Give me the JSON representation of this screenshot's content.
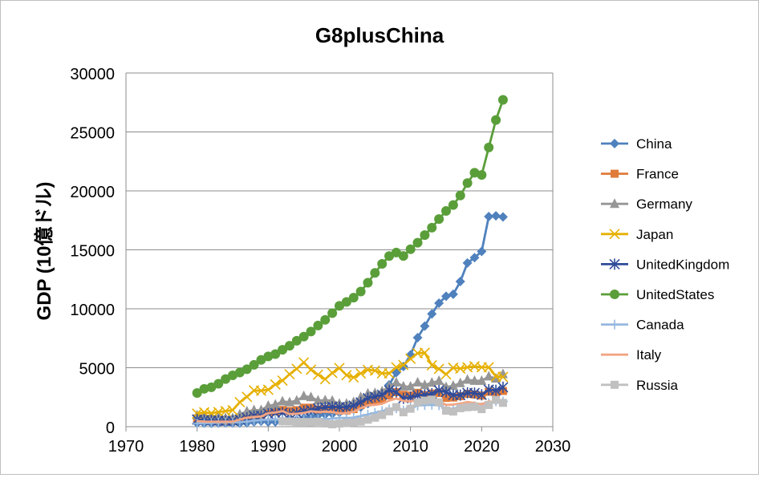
{
  "chart_data": {
    "type": "scatter",
    "title": "G8plusChina",
    "xlabel": "",
    "ylabel": "GDP (10億ドル)",
    "xlim": [
      1970,
      2030
    ],
    "ylim": [
      0,
      30000
    ],
    "x_ticks": [
      1970,
      1980,
      1990,
      2000,
      2010,
      2020,
      2030
    ],
    "y_ticks": [
      0,
      5000,
      10000,
      15000,
      20000,
      25000,
      30000
    ],
    "grid": "horizontal",
    "legend_position": "right",
    "x": [
      1980,
      1981,
      1982,
      1983,
      1984,
      1985,
      1986,
      1987,
      1988,
      1989,
      1990,
      1991,
      1992,
      1993,
      1994,
      1995,
      1996,
      1997,
      1998,
      1999,
      2000,
      2001,
      2002,
      2003,
      2004,
      2005,
      2006,
      2007,
      2008,
      2009,
      2010,
      2011,
      2012,
      2013,
      2014,
      2015,
      2016,
      2017,
      2018,
      2019,
      2020,
      2021,
      2022,
      2023
    ],
    "series": [
      {
        "name": "China",
        "color": "#4f81bd",
        "marker": "diamond",
        "values": [
          310,
          290,
          280,
          300,
          310,
          310,
          300,
          320,
          410,
          460,
          400,
          410,
          490,
          620,
          560,
          730,
          860,
          960,
          1030,
          1090,
          1210,
          1340,
          1470,
          1660,
          1960,
          2290,
          2750,
          3550,
          4590,
          5100,
          6090,
          7550,
          8530,
          9570,
          10480,
          11060,
          11230,
          12310,
          13890,
          14340,
          14860,
          17820,
          17880,
          17790
        ]
      },
      {
        "name": "France",
        "color": "#e07b39",
        "marker": "square",
        "values": [
          700,
          620,
          580,
          560,
          530,
          550,
          770,
          920,
          1010,
          1020,
          1270,
          1280,
          1410,
          1330,
          1400,
          1610,
          1610,
          1460,
          1500,
          1480,
          1370,
          1380,
          1490,
          1840,
          2120,
          2200,
          2320,
          2660,
          2930,
          2700,
          2650,
          2870,
          2680,
          2810,
          2850,
          2440,
          2470,
          2590,
          2790,
          2730,
          2640,
          2960,
          2780,
          3030
        ]
      },
      {
        "name": "Germany",
        "color": "#969696",
        "marker": "triangle",
        "values": [
          950,
          800,
          780,
          770,
          720,
          730,
          1050,
          1300,
          1400,
          1400,
          1770,
          1870,
          2140,
          2070,
          2210,
          2590,
          2500,
          2220,
          2240,
          2200,
          1950,
          1950,
          2080,
          2500,
          2810,
          2850,
          2990,
          3430,
          3750,
          3410,
          3400,
          3750,
          3530,
          3730,
          3890,
          3360,
          3470,
          3690,
          3980,
          3890,
          3890,
          4260,
          4080,
          4460
        ]
      },
      {
        "name": "Japan",
        "color": "#e6b000",
        "marker": "x",
        "values": [
          1110,
          1220,
          1140,
          1240,
          1320,
          1400,
          2080,
          2530,
          3070,
          3050,
          3130,
          3580,
          3910,
          4450,
          4910,
          5450,
          4830,
          4410,
          4030,
          4560,
          4970,
          4370,
          4180,
          4520,
          4820,
          4760,
          4530,
          4520,
          5040,
          5230,
          5760,
          6230,
          6270,
          5210,
          4900,
          4440,
          5000,
          4930,
          5040,
          5120,
          5040,
          5040,
          4260,
          4210
        ]
      },
      {
        "name": "UnitedKingdom",
        "color": "#2f4b99",
        "marker": "asterisk",
        "values": [
          600,
          560,
          530,
          510,
          480,
          500,
          600,
          750,
          910,
          920,
          1090,
          1140,
          1180,
          1070,
          1150,
          1330,
          1400,
          1550,
          1640,
          1680,
          1660,
          1640,
          1790,
          2060,
          2420,
          2540,
          2710,
          3090,
          2920,
          2410,
          2490,
          2660,
          2700,
          2790,
          3070,
          2930,
          2690,
          2680,
          2870,
          2850,
          2700,
          3140,
          3080,
          3340
        ]
      },
      {
        "name": "UnitedStates",
        "color": "#5a9e3a",
        "marker": "circle",
        "values": [
          2860,
          3210,
          3340,
          3640,
          4040,
          4350,
          4590,
          4870,
          5250,
          5660,
          5960,
          6160,
          6520,
          6860,
          7290,
          7640,
          8070,
          8580,
          9060,
          9630,
          10250,
          10580,
          10940,
          11460,
          12210,
          13040,
          13810,
          14470,
          14770,
          14480,
          15050,
          15600,
          16250,
          16880,
          17610,
          18300,
          18800,
          19610,
          20660,
          21540,
          21350,
          23680,
          26010,
          27720
        ]
      },
      {
        "name": "Canada",
        "color": "#95b8e0",
        "marker": "plus",
        "values": [
          280,
          310,
          320,
          350,
          360,
          370,
          380,
          430,
          510,
          570,
          600,
          610,
          590,
          580,
          580,
          600,
          630,
          650,
          630,
          680,
          750,
          740,
          760,
          900,
          1030,
          1170,
          1320,
          1470,
          1550,
          1380,
          1620,
          1790,
          1830,
          1850,
          1810,
          1560,
          1530,
          1650,
          1730,
          1740,
          1650,
          2010,
          2160,
          2140
        ]
      },
      {
        "name": "Italy",
        "color": "#f2a582",
        "marker": "none",
        "values": [
          480,
          430,
          420,
          430,
          420,
          430,
          610,
          760,
          830,
          870,
          1140,
          1200,
          1320,
          1070,
          1100,
          1170,
          1310,
          1240,
          1270,
          1250,
          1140,
          1160,
          1270,
          1570,
          1800,
          1850,
          1940,
          2210,
          2390,
          2190,
          2140,
          2300,
          2090,
          2140,
          2160,
          1840,
          1880,
          1960,
          2090,
          2010,
          1900,
          2150,
          2050,
          2250
        ]
      },
      {
        "name": "Russia",
        "color": "#c0c0c0",
        "marker": "square",
        "values": [
          null,
          null,
          null,
          null,
          null,
          null,
          null,
          null,
          null,
          null,
          null,
          null,
          460,
          440,
          400,
          400,
          390,
          410,
          270,
          200,
          260,
          310,
          350,
          430,
          590,
          760,
          990,
          1300,
          1660,
          1220,
          1520,
          2050,
          2210,
          2290,
          2060,
          1360,
          1280,
          1570,
          1650,
          1690,
          1490,
          1840,
          2270,
          2020
        ]
      }
    ]
  }
}
